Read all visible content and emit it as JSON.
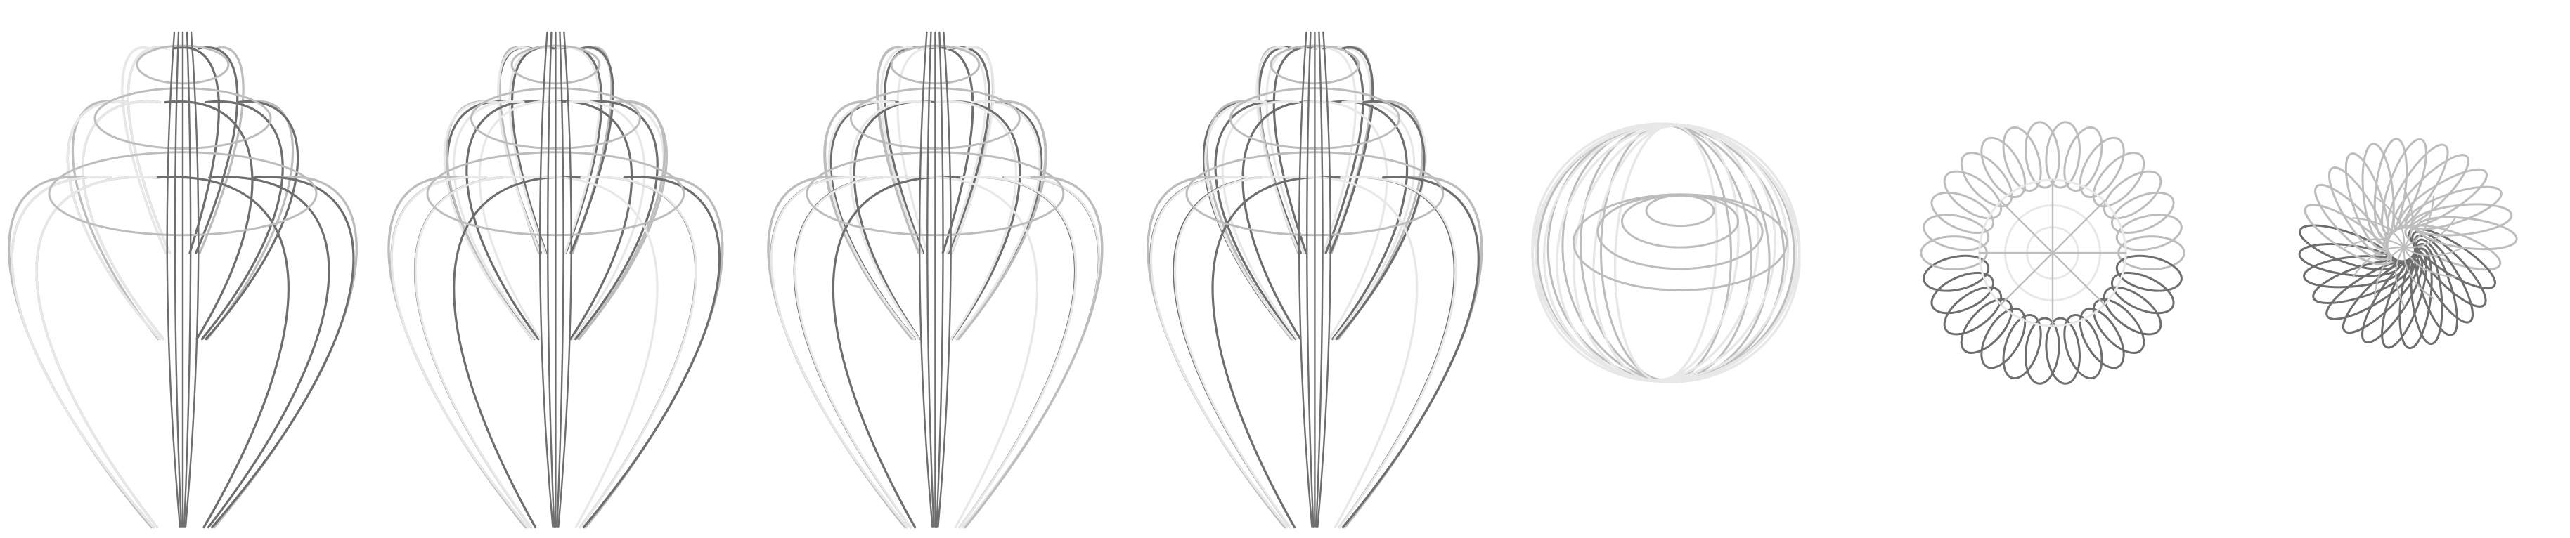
{
  "scene": {
    "background": "#ffffff",
    "stroke_light": "#e8e8e8",
    "stroke_mid": "#bdbdbd",
    "stroke_dark": "#6e6e6e",
    "renders": [
      {
        "id": "shell-side-1",
        "view": "side",
        "twist": 0.0
      },
      {
        "id": "shell-side-2",
        "view": "side",
        "twist": 0.9
      },
      {
        "id": "shell-side-3",
        "view": "side",
        "twist": 1.8
      },
      {
        "id": "shell-side-4",
        "view": "side",
        "twist": 2.7
      },
      {
        "id": "shell-oblique",
        "view": "oblique",
        "twist": 0.4
      },
      {
        "id": "shell-top",
        "view": "top",
        "twist": 0.0
      },
      {
        "id": "shell-apex",
        "view": "apex",
        "twist": 0.0
      }
    ]
  }
}
